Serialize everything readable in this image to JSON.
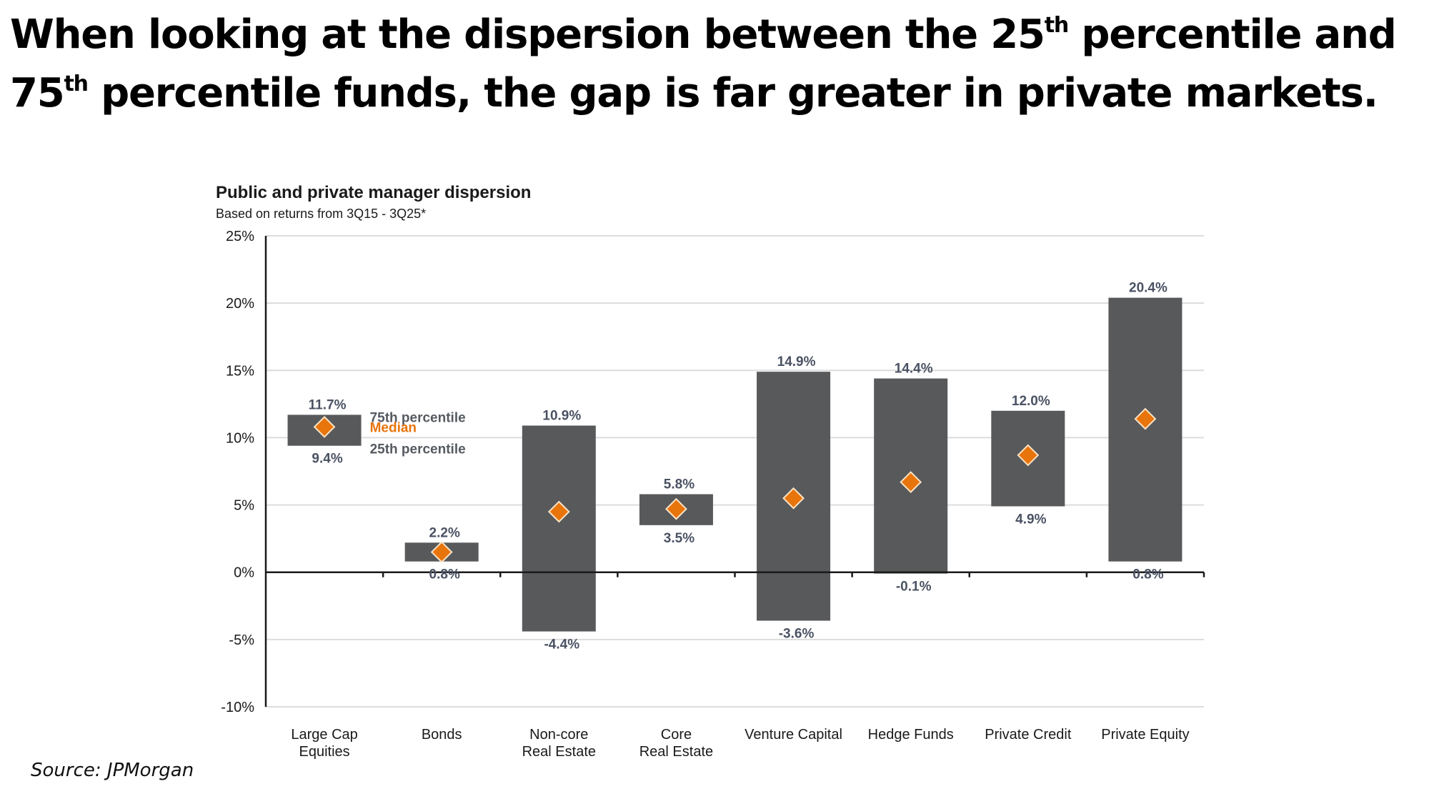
{
  "headline": {
    "line1_pre": "When looking at the dispersion between the 25",
    "line1_sup": "th",
    "line1_post": " percentile and",
    "line2_pre": "75",
    "line2_sup": "th",
    "line2_post": " percentile funds, the gap is far greater in private markets."
  },
  "source": "Source: JPMorgan",
  "colors": {
    "bar": "#58595b",
    "median": "#e8740c",
    "median_border": "#fbe3c4",
    "label": "#4a5263",
    "grid": "#dcdcdc",
    "axis": "#1a1a1a"
  },
  "chart_data": {
    "type": "bar",
    "subtype": "floating-range-with-median",
    "title": "Public and private manager dispersion",
    "subtitle": "Based on returns from 3Q15 - 3Q25*",
    "xlabel": "",
    "ylabel": "",
    "ylim": [
      -10,
      25
    ],
    "yticks": [
      -10,
      -5,
      0,
      5,
      10,
      15,
      20,
      25
    ],
    "ytick_labels": [
      "-10%",
      "-5%",
      "0%",
      "5%",
      "10%",
      "15%",
      "20%",
      "25%"
    ],
    "grid": true,
    "categories": [
      [
        "Large Cap",
        "Equities"
      ],
      [
        "Bonds"
      ],
      [
        "Non-core",
        "Real Estate"
      ],
      [
        "Core",
        "Real Estate"
      ],
      [
        "Venture Capital"
      ],
      [
        "Hedge Funds"
      ],
      [
        "Private Credit"
      ],
      [
        "Private Equity"
      ]
    ],
    "series": [
      {
        "name": "75th percentile",
        "values": [
          11.7,
          2.2,
          10.9,
          5.8,
          14.9,
          14.4,
          12.0,
          20.4
        ],
        "labels": [
          "11.7%",
          "2.2%",
          "10.9%",
          "5.8%",
          "14.9%",
          "14.4%",
          "12.0%",
          "20.4%"
        ]
      },
      {
        "name": "Median",
        "values": [
          10.8,
          1.5,
          4.5,
          4.7,
          5.5,
          6.7,
          8.7,
          11.4
        ]
      },
      {
        "name": "25th percentile",
        "values": [
          9.4,
          0.8,
          -4.4,
          3.5,
          -3.6,
          -0.1,
          4.9,
          0.8
        ],
        "labels": [
          "9.4%",
          "0.8%",
          "-4.4%",
          "3.5%",
          "-3.6%",
          "-0.1%",
          "4.9%",
          "0.8%"
        ]
      }
    ],
    "legend": {
      "placement": "inline-next-to-first-bar",
      "items": [
        "75th percentile",
        "Median",
        "25th percentile"
      ]
    }
  }
}
